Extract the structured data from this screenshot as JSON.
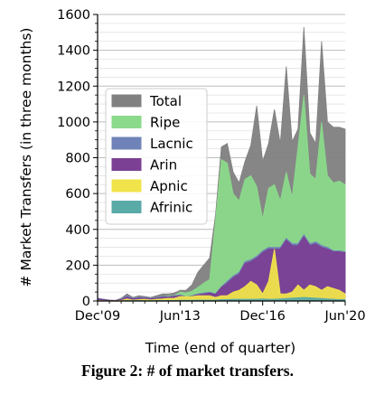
{
  "caption": "Figure 2: # of market transfers.",
  "chart_data": {
    "type": "area",
    "title": "",
    "xlabel": "Time (end of quarter)",
    "ylabel": "# Market Transfers (in three months)",
    "x_ticks": [
      "Dec'09",
      "Jun'13",
      "Dec'16",
      "Jun'20"
    ],
    "y_ticks": [
      0,
      200,
      400,
      600,
      800,
      1000,
      1200,
      1400,
      1600
    ],
    "ylim": [
      0,
      1600
    ],
    "grid": "horizontal",
    "legend_position": "center-left",
    "x_quarters": [
      "2009Q4",
      "2010Q1",
      "2010Q2",
      "2010Q3",
      "2010Q4",
      "2011Q1",
      "2011Q2",
      "2011Q3",
      "2011Q4",
      "2012Q1",
      "2012Q2",
      "2012Q3",
      "2012Q4",
      "2013Q1",
      "2013Q2",
      "2013Q3",
      "2013Q4",
      "2014Q1",
      "2014Q2",
      "2014Q3",
      "2014Q4",
      "2015Q1",
      "2015Q2",
      "2015Q3",
      "2015Q4",
      "2016Q1",
      "2016Q2",
      "2016Q3",
      "2016Q4",
      "2017Q1",
      "2017Q2",
      "2017Q3",
      "2017Q4",
      "2018Q1",
      "2018Q2",
      "2018Q3",
      "2018Q4",
      "2019Q1",
      "2019Q2",
      "2019Q3",
      "2019Q4",
      "2020Q1",
      "2020Q2"
    ],
    "series": [
      {
        "name": "Total",
        "color": "#808080",
        "values": [
          15,
          10,
          5,
          3,
          15,
          40,
          20,
          30,
          25,
          20,
          30,
          40,
          40,
          45,
          60,
          60,
          90,
          160,
          200,
          240,
          480,
          860,
          880,
          720,
          660,
          780,
          870,
          1090,
          780,
          880,
          1070,
          880,
          1310,
          890,
          960,
          1530,
          940,
          880,
          1450,
          1000,
          970,
          970,
          960
        ]
      },
      {
        "name": "Ripe",
        "color": "#8bd98b",
        "values": [
          5,
          3,
          2,
          2,
          5,
          25,
          10,
          15,
          15,
          10,
          15,
          20,
          30,
          30,
          50,
          45,
          55,
          75,
          100,
          120,
          450,
          790,
          770,
          600,
          560,
          680,
          700,
          640,
          460,
          630,
          650,
          560,
          720,
          580,
          860,
          1150,
          710,
          680,
          1000,
          700,
          660,
          670,
          650
        ]
      },
      {
        "name": "Lacnic",
        "color": "#6f83b8",
        "values": [
          15,
          10,
          5,
          3,
          10,
          30,
          15,
          20,
          20,
          15,
          20,
          25,
          25,
          30,
          35,
          25,
          30,
          40,
          45,
          50,
          40,
          80,
          110,
          140,
          160,
          220,
          230,
          250,
          280,
          300,
          300,
          300,
          350,
          320,
          320,
          370,
          320,
          330,
          310,
          300,
          280,
          280,
          275
        ]
      },
      {
        "name": "Arin",
        "color": "#7b3f93",
        "values": [
          12,
          8,
          4,
          3,
          8,
          22,
          12,
          16,
          16,
          12,
          16,
          20,
          22,
          25,
          30,
          22,
          26,
          35,
          40,
          45,
          38,
          75,
          100,
          130,
          150,
          210,
          220,
          240,
          270,
          290,
          290,
          290,
          340,
          310,
          310,
          360,
          310,
          320,
          300,
          290,
          275,
          275,
          270
        ]
      },
      {
        "name": "Apnic",
        "color": "#f0e44a",
        "values": [
          3,
          2,
          1,
          1,
          3,
          12,
          5,
          8,
          10,
          6,
          10,
          12,
          15,
          15,
          25,
          25,
          25,
          30,
          30,
          30,
          20,
          30,
          30,
          50,
          60,
          80,
          110,
          90,
          40,
          110,
          290,
          40,
          40,
          50,
          90,
          60,
          90,
          80,
          60,
          80,
          70,
          60,
          40
        ]
      },
      {
        "name": "Afrinic",
        "color": "#5aaaa8",
        "values": [
          1,
          1,
          1,
          0,
          1,
          3,
          2,
          3,
          2,
          2,
          3,
          3,
          3,
          3,
          4,
          4,
          4,
          5,
          5,
          5,
          5,
          8,
          8,
          10,
          10,
          10,
          10,
          10,
          12,
          10,
          10,
          12,
          14,
          16,
          18,
          20,
          18,
          16,
          14,
          12,
          10,
          8,
          8
        ]
      }
    ]
  }
}
